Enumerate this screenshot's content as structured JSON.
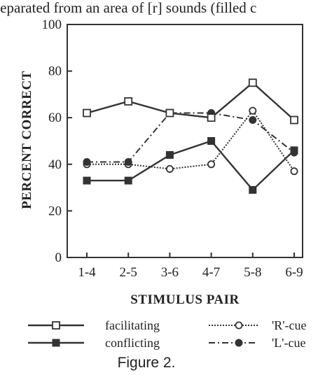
{
  "top_text": "separated from an area of [r] sounds (filled c",
  "caption": "Figure 2.",
  "chart_data": {
    "type": "line",
    "categories": [
      "1-4",
      "2-5",
      "3-6",
      "4-7",
      "5-8",
      "6-9"
    ],
    "xlabel": "STIMULUS PAIR",
    "ylabel": "PERCENT CORRECT",
    "ylim": [
      0,
      100
    ],
    "yticks": [
      0,
      20,
      40,
      60,
      80,
      100
    ],
    "grid": false,
    "legend_position": "bottom",
    "series": [
      {
        "name": "facilitating",
        "values": [
          62,
          67,
          62,
          60,
          75,
          59
        ],
        "line": "solid",
        "marker": "open-square",
        "color": "#333333"
      },
      {
        "name": "conflicting",
        "values": [
          33,
          33,
          44,
          50,
          29,
          46
        ],
        "line": "solid",
        "marker": "filled-square",
        "color": "#333333"
      },
      {
        "name": "'R'-cue",
        "values": [
          40,
          40,
          38,
          40,
          63,
          37
        ],
        "line": "dotted",
        "marker": "open-circle",
        "color": "#333333"
      },
      {
        "name": "'L'-cue",
        "values": [
          41,
          41,
          62,
          62,
          59,
          45
        ],
        "line": "dash-dot",
        "marker": "filled-circle",
        "color": "#333333"
      }
    ]
  }
}
